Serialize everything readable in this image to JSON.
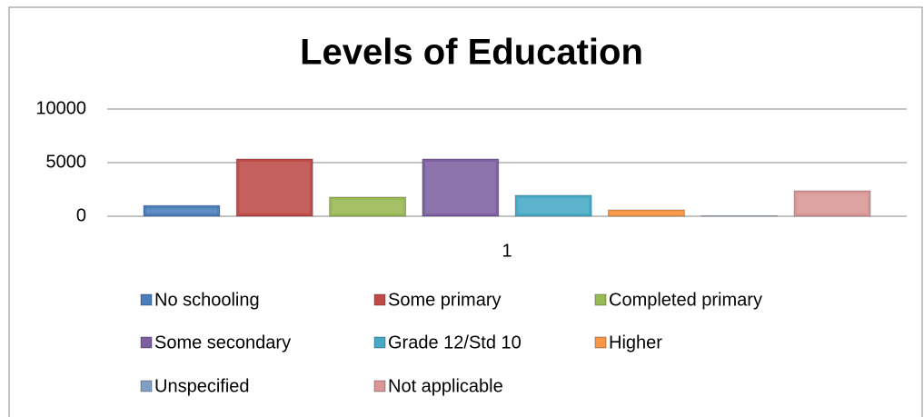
{
  "chart_data": {
    "type": "bar",
    "title": "Levels of Education",
    "categories": [
      "1"
    ],
    "series": [
      {
        "name": "No schooling",
        "color": "#4a7ebb",
        "values": [
          1000
        ]
      },
      {
        "name": "Some primary",
        "color": "#be4b48",
        "values": [
          5340
        ]
      },
      {
        "name": "Completed primary",
        "color": "#98b954",
        "values": [
          1780
        ]
      },
      {
        "name": "Some secondary",
        "color": "#7d60a0",
        "values": [
          5340
        ]
      },
      {
        "name": "Grade 12/Std 10",
        "color": "#46aac5",
        "values": [
          1950
        ]
      },
      {
        "name": "Higher",
        "color": "#f79646",
        "values": [
          590
        ]
      },
      {
        "name": "Unspecified",
        "color": "#7f9fc4",
        "values": [
          50
        ]
      },
      {
        "name": "Not applicable",
        "color": "#d99694",
        "values": [
          2370
        ]
      }
    ],
    "ylim": [
      0,
      10000
    ],
    "yticks": [
      0,
      5000,
      10000
    ],
    "grid": true,
    "legend": "bottom"
  }
}
